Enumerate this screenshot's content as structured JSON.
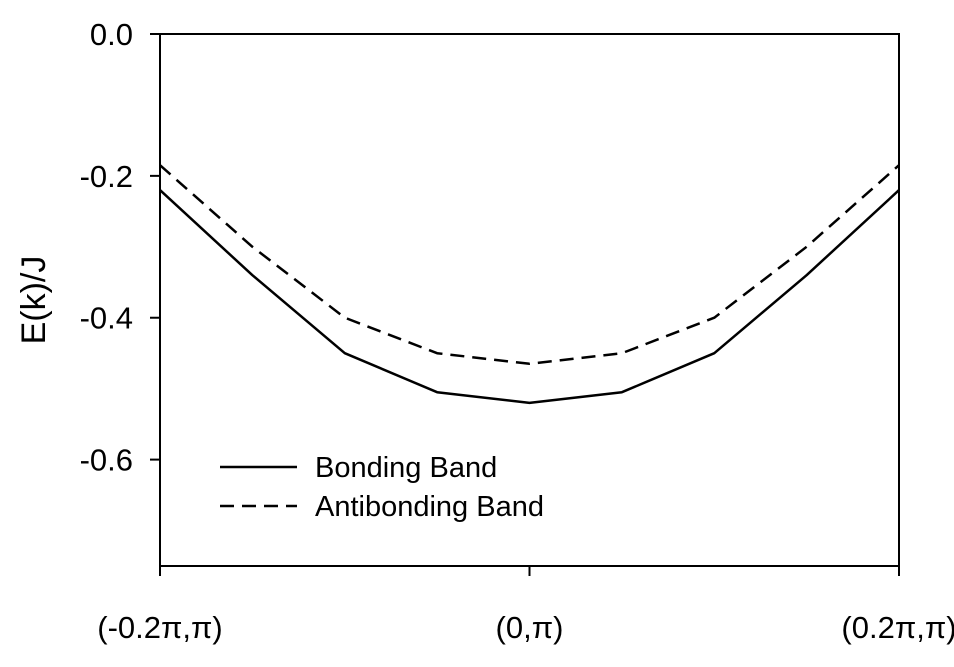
{
  "chart_data": {
    "type": "line",
    "title": "",
    "xlabel": "",
    "ylabel": "E(k)/J",
    "x_ticks": [
      {
        "k": -0.2,
        "label": "(-0.2π,π)"
      },
      {
        "k": 0,
        "label": "(0,π)"
      },
      {
        "k": 0.2,
        "label": "(0.2π,π)"
      }
    ],
    "y_ticks": [
      0.0,
      -0.2,
      -0.4,
      -0.6
    ],
    "y_tick_labels": [
      "0.0",
      "-0.2",
      "-0.4",
      "-0.6"
    ],
    "xlim": [
      -0.2,
      0.2
    ],
    "ylim": [
      -0.75,
      0.0
    ],
    "grid": false,
    "legend_position": "bottom-left",
    "series": [
      {
        "name": "Bonding Band",
        "style": "solid",
        "color": "#000000",
        "x": [
          -0.2,
          -0.15,
          -0.1,
          -0.05,
          0.0,
          0.05,
          0.1,
          0.15,
          0.2
        ],
        "y": [
          -0.22,
          -0.34,
          -0.45,
          -0.505,
          -0.52,
          -0.505,
          -0.45,
          -0.34,
          -0.22
        ]
      },
      {
        "name": "Antibonding Band",
        "style": "dashed",
        "color": "#000000",
        "x": [
          -0.2,
          -0.15,
          -0.1,
          -0.05,
          0.0,
          0.05,
          0.1,
          0.15,
          0.2
        ],
        "y": [
          -0.185,
          -0.3,
          -0.4,
          -0.45,
          -0.465,
          -0.45,
          -0.4,
          -0.3,
          -0.185
        ]
      }
    ]
  }
}
